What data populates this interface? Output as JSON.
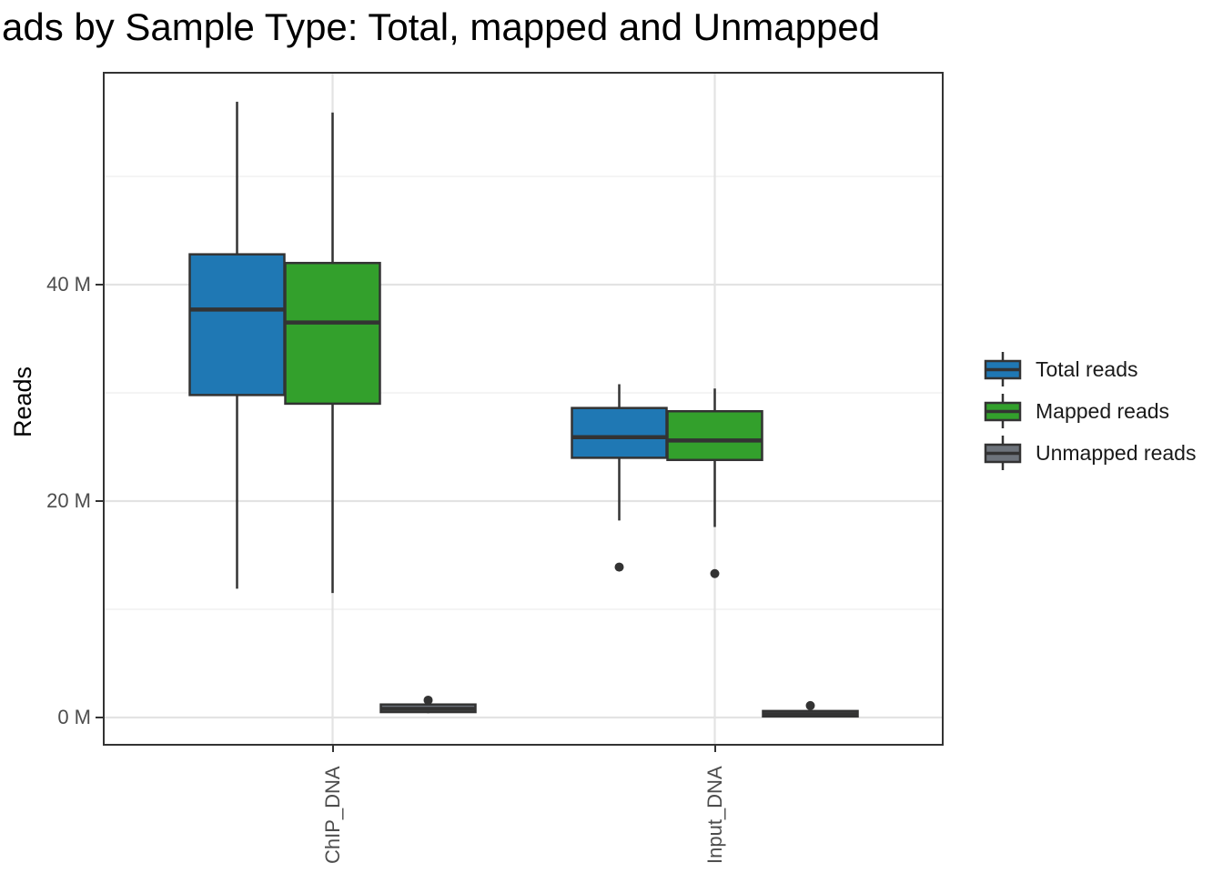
{
  "title": "ads by Sample Type: Total, mapped and Unmapped",
  "chart_data": {
    "type": "boxplot",
    "title": "ads by Sample Type: Total, mapped and Unmapped",
    "xlabel": "",
    "ylabel": "Reads",
    "unit": "millions of reads (M)",
    "ylim": [
      -2.5,
      59.7
    ],
    "grid": {
      "major": [
        0,
        20,
        40
      ],
      "minor": [
        10,
        30,
        50
      ],
      "vertical_major_at_categories": true
    },
    "y_ticks": [
      {
        "label": "0 M",
        "value": 0
      },
      {
        "label": "20 M",
        "value": 20
      },
      {
        "label": "40 M",
        "value": 40
      }
    ],
    "categories": [
      "ChIP_DNA",
      "Input_DNA"
    ],
    "legend_position": "right",
    "series": [
      {
        "name": "Total reads",
        "color": "#1F78B4",
        "boxes": [
          {
            "category": "ChIP_DNA",
            "whisker_low": 11.9,
            "q1": 29.8,
            "median": 37.7,
            "q3": 42.8,
            "whisker_high": 56.9,
            "outliers": []
          },
          {
            "category": "Input_DNA",
            "whisker_low": 18.2,
            "q1": 24.0,
            "median": 25.9,
            "q3": 28.6,
            "whisker_high": 30.8,
            "outliers": [
              13.9
            ]
          }
        ]
      },
      {
        "name": "Mapped reads",
        "color": "#33A02C",
        "boxes": [
          {
            "category": "ChIP_DNA",
            "whisker_low": 11.5,
            "q1": 29.0,
            "median": 36.5,
            "q3": 42.0,
            "whisker_high": 55.9,
            "outliers": []
          },
          {
            "category": "Input_DNA",
            "whisker_low": 17.6,
            "q1": 23.8,
            "median": 25.6,
            "q3": 28.3,
            "whisker_high": 30.4,
            "outliers": [
              13.3
            ]
          }
        ]
      },
      {
        "name": "Unmapped reads",
        "color": "#6D737B",
        "boxes": [
          {
            "category": "ChIP_DNA",
            "whisker_low": 0.4,
            "q1": 0.5,
            "median": 0.8,
            "q3": 1.2,
            "whisker_high": 1.3,
            "outliers": [
              1.6
            ]
          },
          {
            "category": "Input_DNA",
            "whisker_low": 0.1,
            "q1": 0.1,
            "median": 0.3,
            "q3": 0.6,
            "whisker_high": 0.7,
            "outliers": [
              1.1
            ]
          }
        ]
      }
    ]
  },
  "legend": {
    "entries": [
      {
        "label": "Total reads",
        "color": "#1F78B4"
      },
      {
        "label": "Mapped reads",
        "color": "#33A02C"
      },
      {
        "label": "Unmapped reads",
        "color": "#6D737B"
      }
    ]
  },
  "style_colors": {
    "box_stroke": "#333333",
    "grid_major": "#e3e3e3",
    "grid_minor": "#f0f0f0",
    "tick_text": "#4d4d4d",
    "outlier": "#333333"
  }
}
